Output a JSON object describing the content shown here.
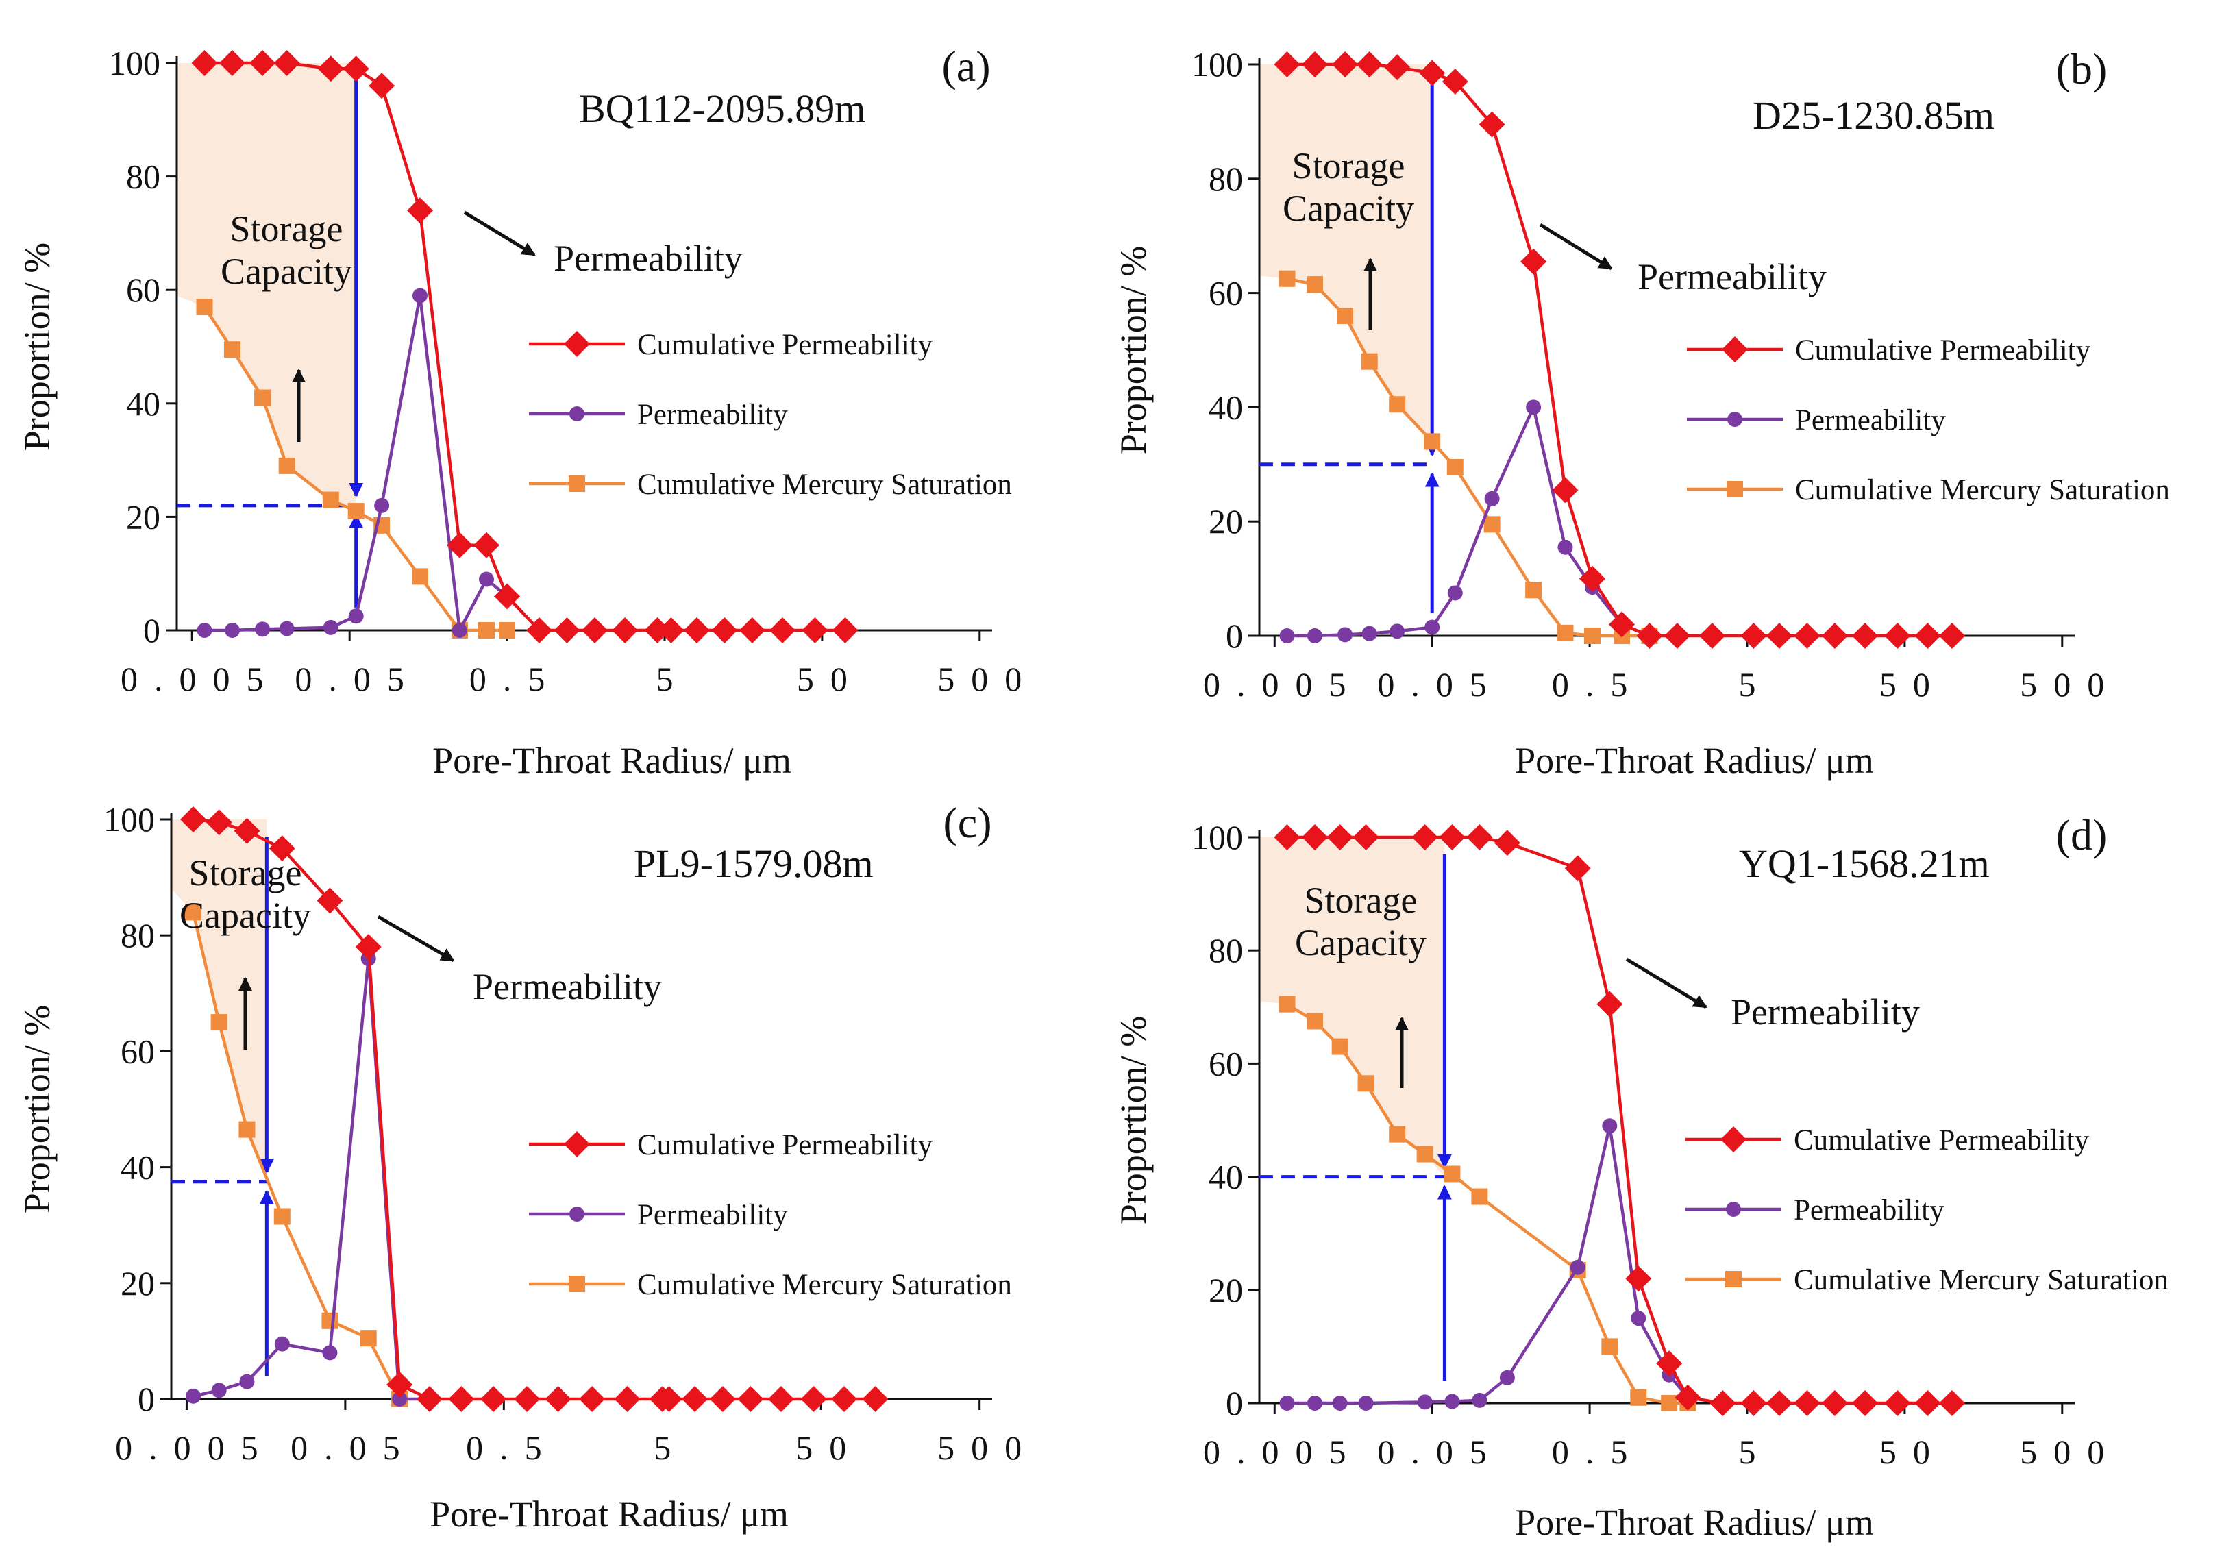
{
  "chart_data": [
    {
      "type": "line",
      "panel": "(a)",
      "sample": "BQ112-2095.89m",
      "xlabel": "Pore-Throat Radius/ μm",
      "ylabel": "Proportion/ %",
      "xscale": "log",
      "xlim": [
        0.004,
        600
      ],
      "ylim": [
        0,
        100
      ],
      "x_ticks": [
        "0.005",
        "0.05",
        "0.5",
        "5",
        "50",
        "500"
      ],
      "y_ticks": [
        "0",
        "20",
        "40",
        "60",
        "80",
        "100"
      ],
      "series": [
        {
          "name": "Cumulative Permeability",
          "color": "#e8141c",
          "marker": "diamond",
          "x": [
            0.006,
            0.009,
            0.014,
            0.02,
            0.038,
            0.055,
            0.08,
            0.14,
            0.25,
            0.37,
            0.5,
            0.8,
            1.2,
            1.8,
            2.8,
            4.5,
            5.5,
            8,
            12,
            18,
            28,
            45,
            70
          ],
          "y": [
            100,
            100,
            100,
            100,
            99,
            99,
            96,
            74,
            15,
            15,
            6,
            0,
            0,
            0,
            0,
            0,
            0,
            0,
            0,
            0,
            0,
            0,
            0
          ]
        },
        {
          "name": "Permeability",
          "color": "#7a3aa2",
          "marker": "circle",
          "x": [
            0.006,
            0.009,
            0.014,
            0.02,
            0.038,
            0.055,
            0.08,
            0.14,
            0.25,
            0.37,
            0.5,
            0.8
          ],
          "y": [
            0,
            0,
            0.2,
            0.3,
            0.5,
            2.5,
            22,
            59,
            0,
            9,
            6,
            0
          ]
        },
        {
          "name": "Cumulative Mercury Saturation",
          "color": "#f08a3c",
          "marker": "square",
          "x": [
            0.006,
            0.009,
            0.014,
            0.02,
            0.038,
            0.055,
            0.08,
            0.14,
            0.25,
            0.37,
            0.5
          ],
          "y": [
            57,
            49.5,
            41,
            29,
            23,
            21,
            18.5,
            9.5,
            0,
            0,
            0
          ]
        }
      ],
      "storage_capacity_label": [
        "Storage",
        "Capacity"
      ],
      "permeability_label": "Permeability",
      "threshold_x": 0.055,
      "threshold_y": 22,
      "storage_curve_start": 59
    },
    {
      "type": "line",
      "panel": "(b)",
      "sample": "D25-1230.85m",
      "xlabel": "Pore-Throat Radius/ μm",
      "ylabel": "Proportion/ %",
      "xscale": "log",
      "xlim": [
        0.004,
        600
      ],
      "ylim": [
        0,
        100
      ],
      "x_ticks": [
        "0.005",
        "0.05",
        "0.5",
        "5",
        "50",
        "500"
      ],
      "y_ticks": [
        "0",
        "20",
        "40",
        "60",
        "80",
        "100"
      ],
      "series": [
        {
          "name": "Cumulative Permeability",
          "color": "#e8141c",
          "marker": "diamond",
          "x": [
            0.006,
            0.009,
            0.014,
            0.02,
            0.03,
            0.05,
            0.07,
            0.12,
            0.22,
            0.35,
            0.52,
            0.8,
            1.2,
            1.8,
            3,
            5.5,
            8,
            12,
            18,
            28,
            45,
            70,
            100
          ],
          "y": [
            100,
            100,
            100,
            100,
            99.5,
            98.5,
            97,
            89.5,
            65.5,
            25.5,
            10,
            2,
            0,
            0,
            0,
            0,
            0,
            0,
            0,
            0,
            0,
            0,
            0
          ]
        },
        {
          "name": "Permeability",
          "color": "#7a3aa2",
          "marker": "circle",
          "x": [
            0.006,
            0.009,
            0.014,
            0.02,
            0.03,
            0.05,
            0.07,
            0.12,
            0.22,
            0.35,
            0.52,
            0.8,
            1.2
          ],
          "y": [
            0,
            0,
            0.2,
            0.4,
            0.8,
            1.5,
            7.5,
            24,
            40,
            15.5,
            8.5,
            2,
            0
          ]
        },
        {
          "name": "Cumulative Mercury Saturation",
          "color": "#f08a3c",
          "marker": "square",
          "x": [
            0.006,
            0.009,
            0.014,
            0.02,
            0.03,
            0.05,
            0.07,
            0.12,
            0.22,
            0.35,
            0.52,
            0.8,
            1.2
          ],
          "y": [
            62.5,
            61.5,
            56,
            48,
            40.5,
            34,
            29.5,
            19.5,
            8,
            0.5,
            0,
            0,
            0
          ]
        }
      ],
      "storage_capacity_label": [
        "Storage",
        "Capacity"
      ],
      "permeability_label": "Permeability",
      "threshold_x": 0.05,
      "threshold_y": 30,
      "storage_curve_start": 63
    },
    {
      "type": "line",
      "panel": "(c)",
      "sample": "PL9-1579.08m",
      "xlabel": "Pore-Throat Radius/ μm",
      "ylabel": "Proportion/ %",
      "xscale": "log",
      "xlim": [
        0.004,
        600
      ],
      "ylim": [
        0,
        100
      ],
      "x_ticks": [
        "0.005",
        "0.05",
        "0.5",
        "5",
        "50",
        "500"
      ],
      "y_ticks": [
        "0",
        "20",
        "40",
        "60",
        "80",
        "100"
      ],
      "series": [
        {
          "name": "Cumulative Permeability",
          "color": "#e8141c",
          "marker": "diamond",
          "x": [
            0.0055,
            0.008,
            0.012,
            0.02,
            0.04,
            0.07,
            0.11,
            0.17,
            0.27,
            0.43,
            0.7,
            1.1,
            1.8,
            3,
            5,
            5.5,
            8,
            12,
            18,
            28,
            45,
            70,
            110
          ],
          "y": [
            100,
            99.5,
            98,
            95,
            86,
            78,
            2.5,
            0,
            0,
            0,
            0,
            0,
            0,
            0,
            0,
            0,
            0,
            0,
            0,
            0,
            0,
            0,
            0
          ]
        },
        {
          "name": "Permeability",
          "color": "#7a3aa2",
          "marker": "circle",
          "x": [
            0.0055,
            0.008,
            0.012,
            0.02,
            0.04,
            0.07,
            0.11,
            0.17
          ],
          "y": [
            0.5,
            1.5,
            3,
            9.5,
            8,
            76,
            0,
            0
          ]
        },
        {
          "name": "Cumulative Mercury Saturation",
          "color": "#f08a3c",
          "marker": "square",
          "x": [
            0.0055,
            0.008,
            0.012,
            0.02,
            0.04,
            0.07,
            0.11
          ],
          "y": [
            84,
            65,
            46.5,
            31.5,
            13.5,
            10.5,
            0
          ]
        }
      ],
      "storage_capacity_label": [
        "Storage",
        "Capacity"
      ],
      "permeability_label": "Permeability",
      "threshold_x": 0.016,
      "threshold_y": 37.5,
      "storage_curve_start": 88
    },
    {
      "type": "line",
      "panel": "(d)",
      "sample": "YQ1-1568.21m",
      "xlabel": "Pore-Throat Radius/ μm",
      "ylabel": "Proportion/ %",
      "xscale": "log",
      "xlim": [
        0.004,
        600
      ],
      "ylim": [
        0,
        100
      ],
      "x_ticks": [
        "0.005",
        "0.05",
        "0.5",
        "5",
        "50",
        "500"
      ],
      "y_ticks": [
        "0",
        "20",
        "40",
        "60",
        "80",
        "100"
      ],
      "series": [
        {
          "name": "Cumulative Permeability",
          "color": "#e8141c",
          "marker": "diamond",
          "x": [
            0.006,
            0.009,
            0.013,
            0.019,
            0.045,
            0.067,
            0.1,
            0.15,
            0.42,
            0.67,
            1.02,
            1.6,
            2.1,
            3.5,
            5.5,
            8,
            12,
            18,
            28,
            45,
            70,
            100
          ],
          "y": [
            100,
            100,
            100,
            100,
            100,
            100,
            100,
            99,
            94.5,
            70.5,
            22,
            7,
            1,
            0,
            0,
            0,
            0,
            0,
            0,
            0,
            0,
            0
          ]
        },
        {
          "name": "Permeability",
          "color": "#7a3aa2",
          "marker": "circle",
          "x": [
            0.006,
            0.009,
            0.013,
            0.019,
            0.045,
            0.067,
            0.1,
            0.15,
            0.42,
            0.67,
            1.02,
            1.6,
            2.1
          ],
          "y": [
            0,
            0,
            0,
            0,
            0.2,
            0.3,
            0.5,
            4.5,
            24,
            49,
            15,
            5,
            1
          ]
        },
        {
          "name": "Cumulative Mercury Saturation",
          "color": "#f08a3c",
          "marker": "square",
          "x": [
            0.006,
            0.009,
            0.013,
            0.019,
            0.03,
            0.045,
            0.067,
            0.1,
            0.42,
            0.67,
            1.02,
            1.6,
            2.1
          ],
          "y": [
            70.5,
            67.5,
            63,
            56.5,
            47.5,
            44,
            40.5,
            36.5,
            23.5,
            10,
            1,
            0,
            0
          ]
        }
      ],
      "storage_capacity_label": [
        "Storage",
        "Capacity"
      ],
      "permeability_label": "Permeability",
      "threshold_x": 0.06,
      "threshold_y": 40,
      "storage_curve_start": 71
    }
  ],
  "legend_entries": [
    "Cumulative Permeability",
    "Permeability",
    "Cumulative Mercury Saturation"
  ],
  "colors": {
    "cumulative_permeability": "#e8141c",
    "permeability": "#7a3aa2",
    "cumulative_mercury_saturation": "#f08a3c",
    "threshold_arrows": "#1a1ae6",
    "storage_shade": "#fbe9dc"
  }
}
